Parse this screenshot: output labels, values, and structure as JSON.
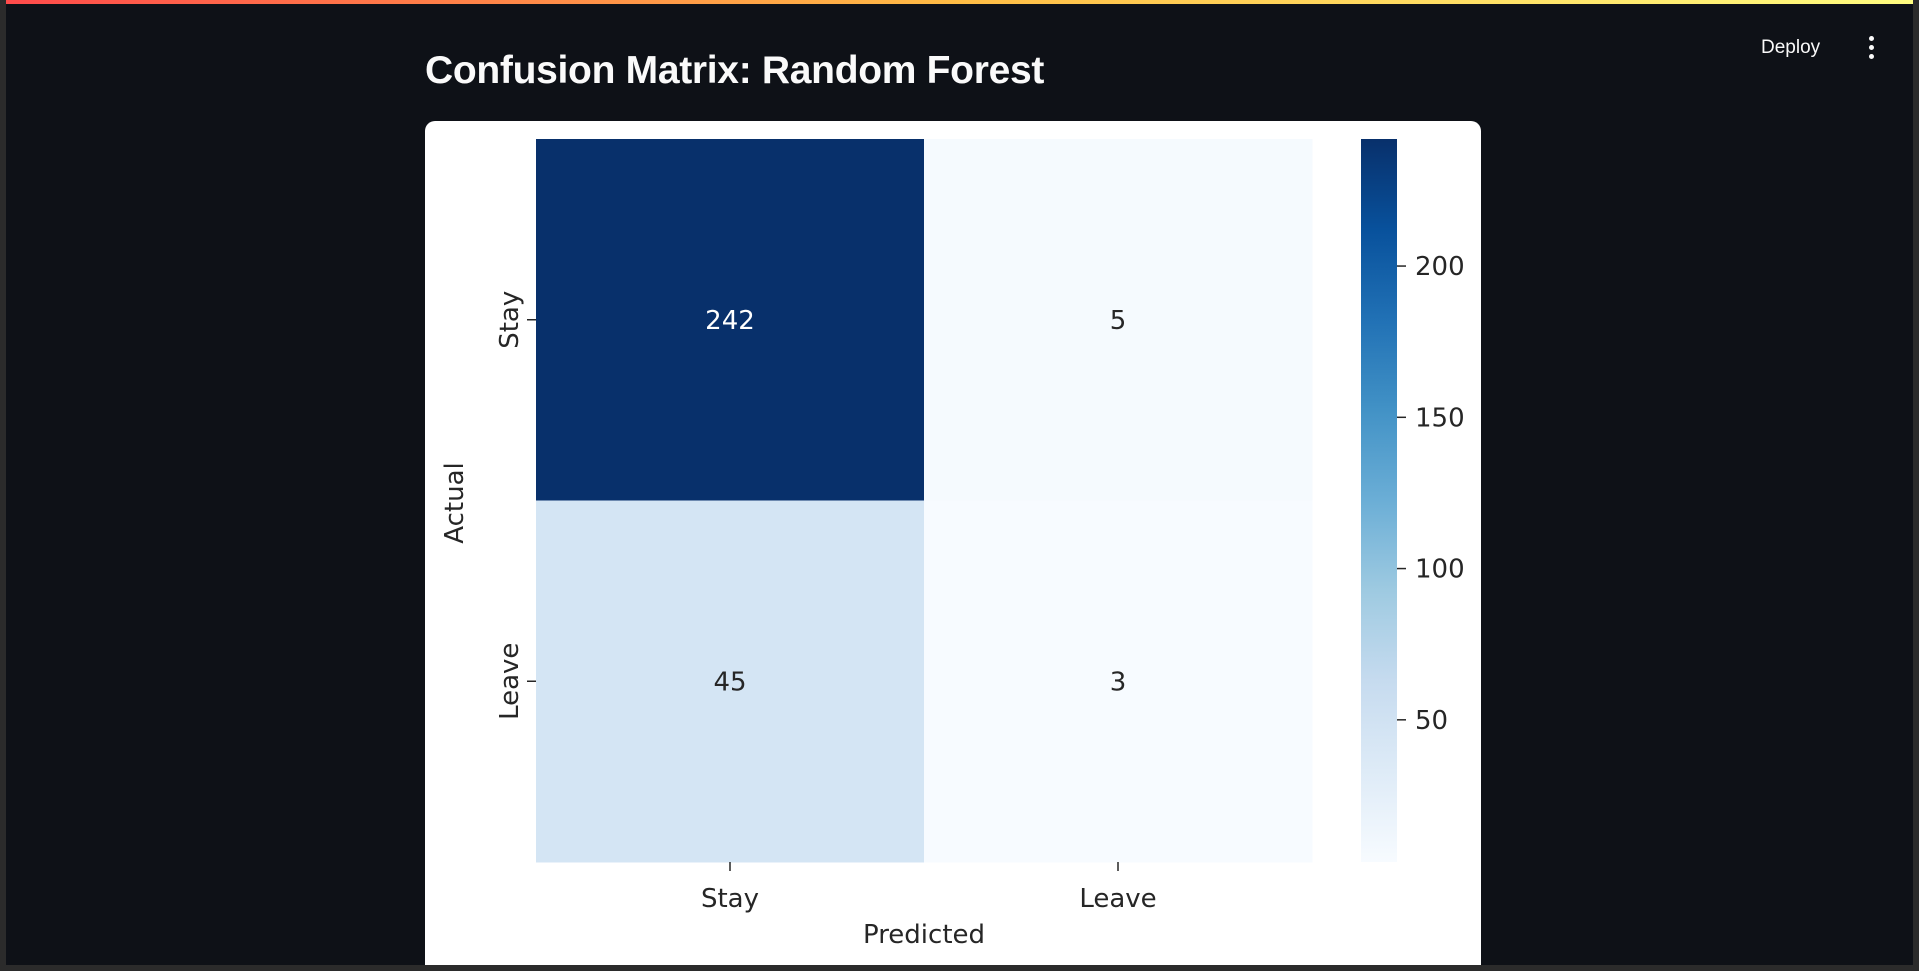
{
  "header": {
    "deploy_label": "Deploy",
    "menu_icon": "kebab-menu-icon",
    "title": "Confusion Matrix: Random Forest"
  },
  "chart_data": {
    "type": "heatmap",
    "title": "",
    "xlabel": "Predicted",
    "ylabel": "Actual",
    "x_categories": [
      "Stay",
      "Leave"
    ],
    "y_categories": [
      "Stay",
      "Leave"
    ],
    "values": [
      [
        242,
        5
      ],
      [
        45,
        3
      ]
    ],
    "colormap": "Blues",
    "colorbar": {
      "range": [
        3,
        242
      ],
      "ticks": [
        50,
        100,
        150,
        200
      ],
      "tick_labels": [
        "50",
        "100",
        "150",
        "200"
      ]
    }
  }
}
